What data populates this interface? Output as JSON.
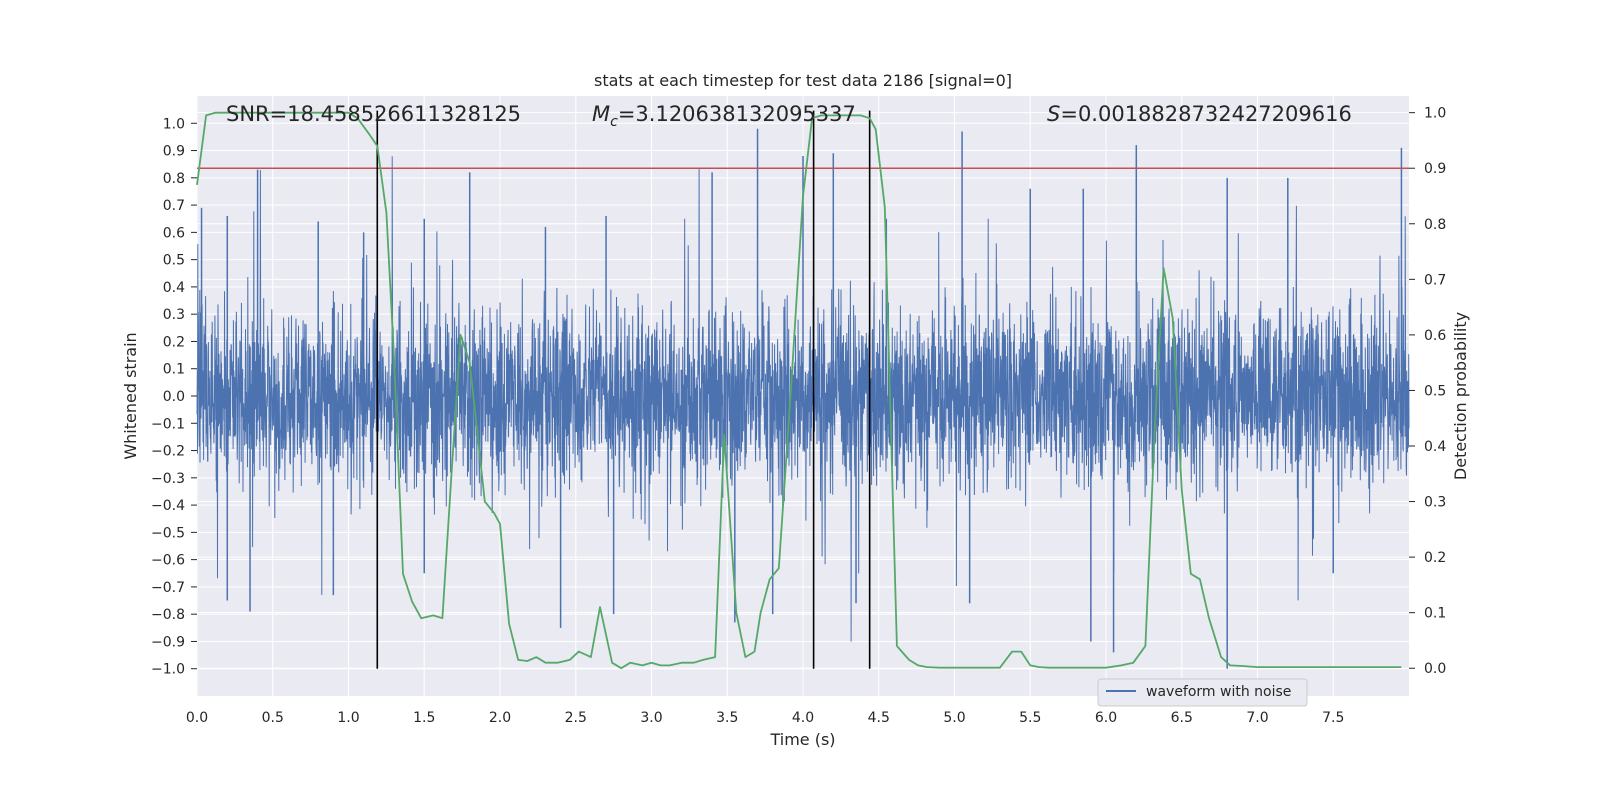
{
  "chart_data": {
    "type": "line",
    "title": "stats at each timestep for test data 2186 [signal=0]",
    "xlabel": "Time (s)",
    "ylabel": "Whitened strain",
    "ylabel_right": "Detection probability",
    "xlim": [
      0.0,
      8.0
    ],
    "ylim": [
      -1.1,
      1.1
    ],
    "ylim_right": [
      -0.05,
      1.03
    ],
    "x_ticks": [
      0.0,
      0.5,
      1.0,
      1.5,
      2.0,
      2.5,
      3.0,
      3.5,
      4.0,
      4.5,
      5.0,
      5.5,
      6.0,
      6.5,
      7.0,
      7.5
    ],
    "x_tick_labels": [
      "0.0",
      "0.5",
      "1.0",
      "1.5",
      "2.0",
      "2.5",
      "3.0",
      "3.5",
      "4.0",
      "4.5",
      "5.0",
      "5.5",
      "6.0",
      "6.5",
      "7.0",
      "7.5"
    ],
    "y_ticks": [
      -1.0,
      -0.9,
      -0.8,
      -0.7,
      -0.6,
      -0.5,
      -0.4,
      -0.3,
      -0.2,
      -0.1,
      0.0,
      0.1,
      0.2,
      0.3,
      0.4,
      0.5,
      0.6,
      0.7,
      0.8,
      0.9,
      1.0
    ],
    "y_tick_labels": [
      "−1.0",
      "−0.9",
      "−0.8",
      "−0.7",
      "−0.6",
      "−0.5",
      "−0.4",
      "−0.3",
      "−0.2",
      "−0.1",
      "0.0",
      "0.1",
      "0.2",
      "0.3",
      "0.4",
      "0.5",
      "0.6",
      "0.7",
      "0.8",
      "0.9",
      "1.0"
    ],
    "y_right_ticks": [
      0.0,
      0.1,
      0.2,
      0.3,
      0.4,
      0.5,
      0.6,
      0.7,
      0.8,
      0.9,
      1.0
    ],
    "y_right_tick_labels": [
      "0.0",
      "0.1",
      "0.2",
      "0.3",
      "0.4",
      "0.5",
      "0.6",
      "0.7",
      "0.8",
      "0.9",
      "1.0"
    ],
    "grid": true,
    "annotations": {
      "snr": "SNR=18.458526611328125",
      "mc_symbol": "M",
      "mc_sub": "c",
      "mc_value": "=3.120638132095337",
      "s_symbol": "S",
      "s_value": "=0.0018828732427209616"
    },
    "series": [
      {
        "name": "waveform with noise",
        "color": "#4c72b0",
        "sample_rate_hz": 2048,
        "description": "dense noise envelope; typical absolute amplitude ~0.35, peaks approx listed",
        "peaks_top": [
          [
            0.03,
            0.69
          ],
          [
            0.2,
            0.66
          ],
          [
            0.4,
            0.83
          ],
          [
            0.8,
            0.64
          ],
          [
            1.1,
            0.6
          ],
          [
            1.5,
            0.65
          ],
          [
            1.8,
            0.82
          ],
          [
            2.3,
            0.62
          ],
          [
            2.7,
            0.66
          ],
          [
            3.4,
            0.82
          ],
          [
            3.7,
            0.98
          ],
          [
            4.0,
            0.88
          ],
          [
            4.2,
            0.89
          ],
          [
            4.55,
            0.65
          ],
          [
            5.05,
            0.97
          ],
          [
            5.5,
            0.76
          ],
          [
            5.85,
            0.76
          ],
          [
            6.2,
            0.92
          ],
          [
            6.8,
            0.8
          ],
          [
            7.2,
            0.8
          ],
          [
            7.95,
            0.91
          ]
        ],
        "peaks_bottom": [
          [
            0.2,
            -0.75
          ],
          [
            0.35,
            -0.79
          ],
          [
            0.9,
            -0.73
          ],
          [
            1.5,
            -0.65
          ],
          [
            2.4,
            -0.85
          ],
          [
            2.75,
            -0.8
          ],
          [
            3.55,
            -0.83
          ],
          [
            3.8,
            -0.8
          ],
          [
            4.35,
            -0.76
          ],
          [
            5.1,
            -0.76
          ],
          [
            5.9,
            -0.9
          ],
          [
            6.05,
            -0.94
          ],
          [
            6.8,
            -1.0
          ],
          [
            7.5,
            -0.65
          ]
        ]
      },
      {
        "name": "detection probability",
        "color": "#55a868",
        "axis": "right",
        "x": [
          0.0,
          0.06,
          0.12,
          0.2,
          0.3,
          0.4,
          0.5,
          0.6,
          0.7,
          0.8,
          0.9,
          1.0,
          1.06,
          1.14,
          1.19,
          1.25,
          1.3,
          1.36,
          1.42,
          1.48,
          1.56,
          1.62,
          1.68,
          1.74,
          1.8,
          1.86,
          1.9,
          1.96,
          2.0,
          2.06,
          2.12,
          2.18,
          2.24,
          2.3,
          2.38,
          2.46,
          2.52,
          2.6,
          2.66,
          2.74,
          2.8,
          2.86,
          2.94,
          3.0,
          3.06,
          3.12,
          3.2,
          3.28,
          3.34,
          3.42,
          3.48,
          3.56,
          3.62,
          3.68,
          3.72,
          3.78,
          3.84,
          3.92,
          4.0,
          4.06,
          4.12,
          4.18,
          4.24,
          4.3,
          4.38,
          4.44,
          4.48,
          4.54,
          4.62,
          4.7,
          4.76,
          4.82,
          4.9,
          5.0,
          5.1,
          5.2,
          5.3,
          5.38,
          5.44,
          5.5,
          5.56,
          5.62,
          5.7,
          5.8,
          5.9,
          6.0,
          6.1,
          6.18,
          6.26,
          6.32,
          6.38,
          6.44,
          6.5,
          6.56,
          6.62,
          6.68,
          6.76,
          6.82,
          6.9,
          7.0,
          7.2,
          7.4,
          7.6,
          7.8,
          7.95
        ],
        "values": [
          0.87,
          0.995,
          1.0,
          1.0,
          1.0,
          1.0,
          1.0,
          1.0,
          1.0,
          1.0,
          1.0,
          1.0,
          0.99,
          0.96,
          0.94,
          0.82,
          0.56,
          0.17,
          0.12,
          0.09,
          0.095,
          0.09,
          0.35,
          0.6,
          0.55,
          0.4,
          0.3,
          0.28,
          0.26,
          0.08,
          0.015,
          0.013,
          0.02,
          0.01,
          0.01,
          0.015,
          0.03,
          0.02,
          0.11,
          0.01,
          0.0,
          0.01,
          0.005,
          0.01,
          0.005,
          0.005,
          0.01,
          0.01,
          0.015,
          0.02,
          0.42,
          0.1,
          0.02,
          0.03,
          0.1,
          0.16,
          0.18,
          0.5,
          0.85,
          0.99,
          0.995,
          0.995,
          0.995,
          0.995,
          0.995,
          0.99,
          0.97,
          0.83,
          0.04,
          0.015,
          0.005,
          0.002,
          0.001,
          0.001,
          0.001,
          0.001,
          0.001,
          0.03,
          0.03,
          0.005,
          0.002,
          0.001,
          0.001,
          0.001,
          0.001,
          0.001,
          0.005,
          0.01,
          0.04,
          0.42,
          0.72,
          0.63,
          0.32,
          0.17,
          0.16,
          0.09,
          0.02,
          0.005,
          0.004,
          0.002,
          0.002,
          0.002,
          0.002,
          0.002,
          0.002
        ]
      },
      {
        "name": "threshold",
        "color": "#c44e52",
        "axis": "right",
        "value": 0.9
      }
    ],
    "vertical_lines": [
      1.19,
      4.07,
      4.44
    ],
    "vertical_lines_color": "#000000",
    "legend": {
      "location": "lower right",
      "entries": [
        "waveform with noise"
      ]
    }
  }
}
